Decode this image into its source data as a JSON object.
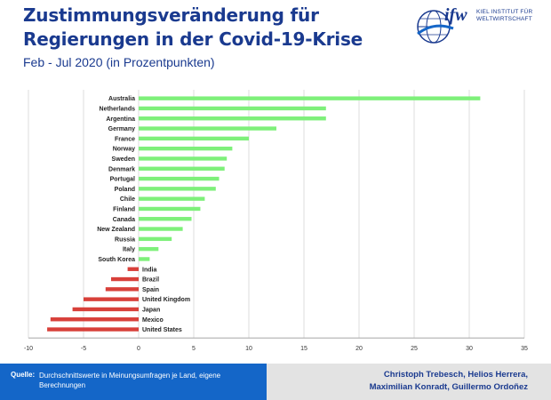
{
  "header": {
    "title": "Zustimmungsveränderung für Regierungen in der Covid-19-Krise",
    "subtitle": "Feb - Jul 2020 (in Prozentpunkten)"
  },
  "logo": {
    "text": "ifw",
    "line1": "KIEL INSTITUT FÜR",
    "line2": "WELTWIRTSCHAFT"
  },
  "footer": {
    "source_label": "Quelle:",
    "source_text": "Durchschnittswerte in Meinungsumfragen je Land, eigene Berechnungen",
    "authors_line1": "Christoph Trebesch, Helios Herrera,",
    "authors_line2": "Maximilian Konradt, Guillermo Ordoñez"
  },
  "colors": {
    "positive": "#7ef07a",
    "negative": "#d8403a",
    "brand": "#1a3a8f",
    "footer_blue": "#1466c8"
  },
  "chart_data": {
    "type": "bar",
    "orientation": "horizontal",
    "categories": [
      "Australia",
      "Netherlands",
      "Argentina",
      "Germany",
      "France",
      "Norway",
      "Sweden",
      "Denmark",
      "Portugal",
      "Poland",
      "Chile",
      "Finland",
      "Canada",
      "New Zealand",
      "Russia",
      "Italy",
      "South Korea",
      "India",
      "Brazil",
      "Spain",
      "United Kingdom",
      "Japan",
      "Mexico",
      "United States"
    ],
    "values": [
      31,
      17,
      17,
      12.5,
      10,
      8.5,
      8,
      7.8,
      7.3,
      7,
      6,
      5.6,
      4.8,
      4,
      3,
      1.8,
      1,
      -1,
      -2.5,
      -3,
      -5,
      -6,
      -8,
      -8.3
    ],
    "xlim": [
      -10,
      35
    ],
    "xticks": [
      "-10",
      "-5",
      "0",
      "5",
      "10",
      "15",
      "20",
      "25",
      "30",
      "35"
    ],
    "grid": true
  }
}
